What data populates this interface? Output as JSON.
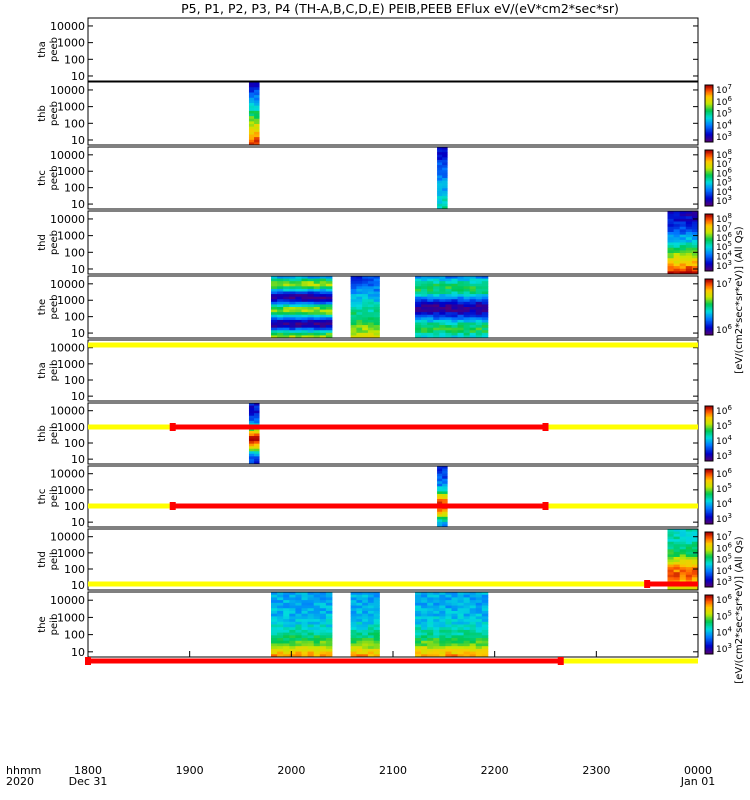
{
  "title": "P5, P1, P2, P3, P4 (TH-A,B,C,D,E) PEIB,PEEB EFlux eV/(eV*cm2*sec*sr)",
  "x_axis": {
    "row_label_1": "hhmm",
    "row_label_2": "2020",
    "ticks": [
      "1800",
      "1900",
      "2000",
      "2100",
      "2200",
      "2300",
      "0000"
    ],
    "date_left": "Dec 31",
    "date_right": "Jan 01"
  },
  "y_ticks": [
    "10000",
    "1000",
    "100",
    "10"
  ],
  "colorbar_labels": {
    "peeb": "[eV/(cm2*sec*sr*eV)] (All Qs)",
    "peib": "[eV/(cm2*sec*sr*eV)] (All Qs)"
  },
  "colors": {
    "flag_yellow": "#ffff00",
    "flag_red": "#ff0000",
    "background": "#ffffff"
  },
  "chart_data": {
    "type": "heatmap",
    "x_range_minutes_after_1800": [
      0,
      360
    ],
    "y_scale": "log",
    "y_range": [
      5,
      30000
    ],
    "panels": [
      {
        "name_1": "tha",
        "name_2": "peeb",
        "blocks": [],
        "colorbar": null
      },
      {
        "name_1": "thb",
        "name_2": "peeb",
        "blocks": [
          {
            "start": 95,
            "end": 101,
            "style": "peeb_b"
          }
        ],
        "colorbar": {
          "ticks": [
            "10^7",
            "10^6",
            "10^5",
            "10^4",
            "10^3"
          ]
        }
      },
      {
        "name_1": "thc",
        "name_2": "peeb",
        "blocks": [
          {
            "start": 206,
            "end": 212,
            "style": "peeb_c"
          }
        ],
        "colorbar": {
          "ticks": [
            "10^8",
            "10^7",
            "10^6",
            "10^5",
            "10^4",
            "10^3"
          ]
        }
      },
      {
        "name_1": "thd",
        "name_2": "peeb",
        "blocks": [
          {
            "start": 342,
            "end": 360,
            "style": "peeb_d"
          }
        ],
        "colorbar": {
          "ticks": [
            "10^8",
            "10^7",
            "10^6",
            "10^5",
            "10^4",
            "10^3"
          ]
        }
      },
      {
        "name_1": "the",
        "name_2": "peeb",
        "blocks": [
          {
            "start": 108,
            "end": 144,
            "style": "peeb_e"
          },
          {
            "start": 155,
            "end": 172,
            "style": "peeb_e2"
          },
          {
            "start": 193,
            "end": 236,
            "style": "peeb_e3"
          }
        ],
        "colorbar": {
          "ticks": [
            "10^7",
            "10^6"
          ]
        }
      },
      {
        "name_1": "tha",
        "name_2": "peib",
        "blocks": [],
        "colorbar": null
      },
      {
        "name_1": "thb",
        "name_2": "peib",
        "blocks": [
          {
            "start": 95,
            "end": 101,
            "style": "peib_b"
          }
        ],
        "colorbar": {
          "ticks": [
            "10^6",
            "10^5",
            "10^4",
            "10^3"
          ]
        }
      },
      {
        "name_1": "thc",
        "name_2": "peib",
        "blocks": [
          {
            "start": 206,
            "end": 212,
            "style": "peib_c"
          }
        ],
        "colorbar": {
          "ticks": [
            "10^6",
            "10^5",
            "10^4",
            "10^3"
          ]
        }
      },
      {
        "name_1": "thd",
        "name_2": "peib",
        "blocks": [
          {
            "start": 342,
            "end": 360,
            "style": "peib_d"
          }
        ],
        "colorbar": {
          "ticks": [
            "10^7",
            "10^6",
            "10^5",
            "10^4",
            "10^3"
          ]
        }
      },
      {
        "name_1": "the",
        "name_2": "peib",
        "blocks": [
          {
            "start": 108,
            "end": 144,
            "style": "peib_e"
          },
          {
            "start": 155,
            "end": 172,
            "style": "peib_e"
          },
          {
            "start": 193,
            "end": 236,
            "style": "peib_e"
          }
        ],
        "colorbar": {
          "ticks": [
            "10^6",
            "10^5",
            "10^4",
            "10^3"
          ]
        }
      }
    ],
    "flag_bars": [
      {
        "after_panel": 4,
        "red_start": null,
        "red_end": null
      },
      {
        "after_panel": 5,
        "red_start": 50,
        "red_end": 270
      },
      {
        "after_panel": 6,
        "red_start": 50,
        "red_end": 270
      },
      {
        "after_panel": 7,
        "red_start": 330,
        "red_end": 360
      },
      {
        "after_panel": 8,
        "red_start": 0,
        "red_end": 279
      }
    ]
  }
}
